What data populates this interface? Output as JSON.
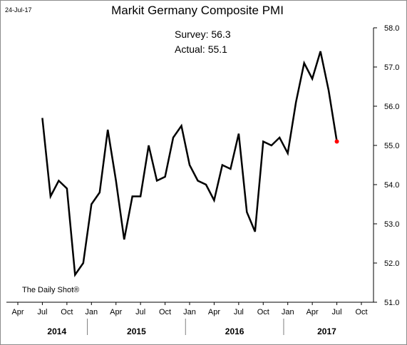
{
  "date_stamp": "24-Jul-17",
  "credit": "The Daily Shot®",
  "chart_data": {
    "type": "line",
    "title": "Markit Germany Composite PMI",
    "annotations": [
      "Survey: 56.3",
      "Actual:  55.1"
    ],
    "xlabel": "",
    "ylabel": "",
    "ylim": [
      51.0,
      58.0
    ],
    "y_ticks": [
      "58.0",
      "57.0",
      "56.0",
      "55.0",
      "54.0",
      "53.0",
      "52.0",
      "51.0"
    ],
    "x_tick_labels": [
      "Apr",
      "Jul",
      "Oct",
      "Jan",
      "Apr",
      "Jul",
      "Oct",
      "Jan",
      "Apr",
      "Jul",
      "Oct",
      "Jan",
      "Apr",
      "Jul",
      "Oct"
    ],
    "year_labels": [
      "2014",
      "2015",
      "2016",
      "2017"
    ],
    "y_axis_position": "right",
    "grid": false,
    "series": [
      {
        "x": [
          "2014-07",
          "2014-08",
          "2014-09",
          "2014-10",
          "2014-11",
          "2014-12",
          "2015-01",
          "2015-02",
          "2015-03",
          "2015-04",
          "2015-05",
          "2015-06",
          "2015-07",
          "2015-08",
          "2015-09",
          "2015-10",
          "2015-11",
          "2015-12",
          "2016-01",
          "2016-02",
          "2016-03",
          "2016-04",
          "2016-05",
          "2016-06",
          "2016-07",
          "2016-08",
          "2016-09",
          "2016-10",
          "2016-11",
          "2016-12",
          "2017-01",
          "2017-02",
          "2017-03",
          "2017-04",
          "2017-05",
          "2017-06",
          "2017-07"
        ],
        "values": [
          55.7,
          53.7,
          54.1,
          53.9,
          51.7,
          52.0,
          53.5,
          53.8,
          55.4,
          54.1,
          52.6,
          53.7,
          53.7,
          55.0,
          54.1,
          54.2,
          55.2,
          55.5,
          54.5,
          54.1,
          54.0,
          53.6,
          54.5,
          54.4,
          55.3,
          53.3,
          52.8,
          55.1,
          55.0,
          55.2,
          54.8,
          56.1,
          57.1,
          56.7,
          57.4,
          56.4,
          55.1
        ],
        "color": "#000000"
      }
    ],
    "highlight_color": "#ff0000"
  }
}
